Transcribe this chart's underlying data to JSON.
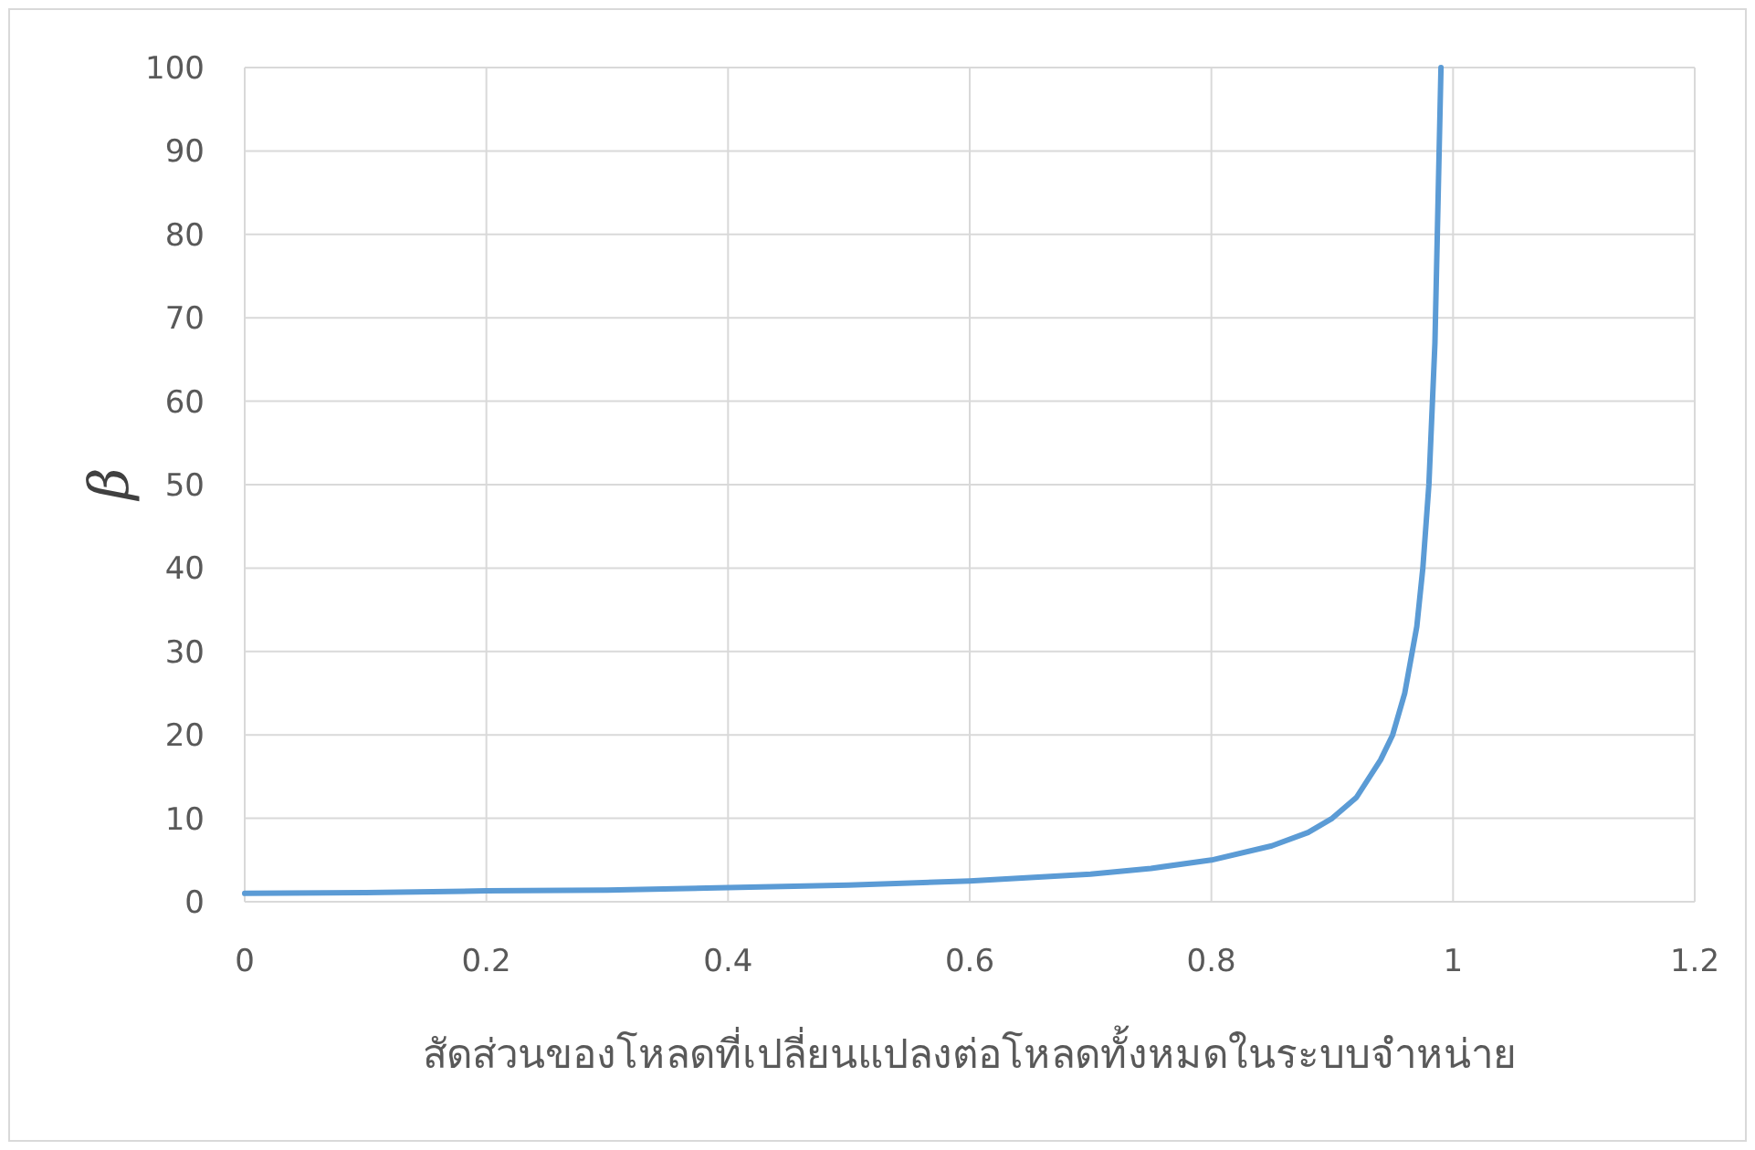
{
  "chart_data": {
    "type": "line",
    "xlabel": "สัดส่วนของโหลดที่เปลี่ยนแปลงต่อโหลดทั้งหมดในระบบจำหน่าย",
    "ylabel": "β",
    "x": [
      0,
      0.1,
      0.2,
      0.3,
      0.4,
      0.5,
      0.6,
      0.65,
      0.7,
      0.75,
      0.8,
      0.85,
      0.88,
      0.9,
      0.92,
      0.94,
      0.95,
      0.96,
      0.97,
      0.975,
      0.98,
      0.985,
      0.99
    ],
    "series": [
      {
        "color": "#5b9bd5",
        "values": [
          1,
          1.1,
          1.3,
          1.4,
          1.7,
          2,
          2.5,
          2.9,
          3.3,
          4,
          5,
          6.7,
          8.3,
          10,
          12.5,
          17,
          20,
          25,
          33,
          40,
          50,
          67,
          100
        ]
      }
    ],
    "xlim": [
      0,
      1.2
    ],
    "ylim": [
      0,
      100
    ],
    "xticks": [
      0,
      0.2,
      0.4,
      0.6,
      0.8,
      1,
      1.2
    ],
    "yticks": [
      0,
      10,
      20,
      30,
      40,
      50,
      60,
      70,
      80,
      90,
      100
    ],
    "grid": true,
    "marker": "none",
    "line_style": "solid"
  }
}
